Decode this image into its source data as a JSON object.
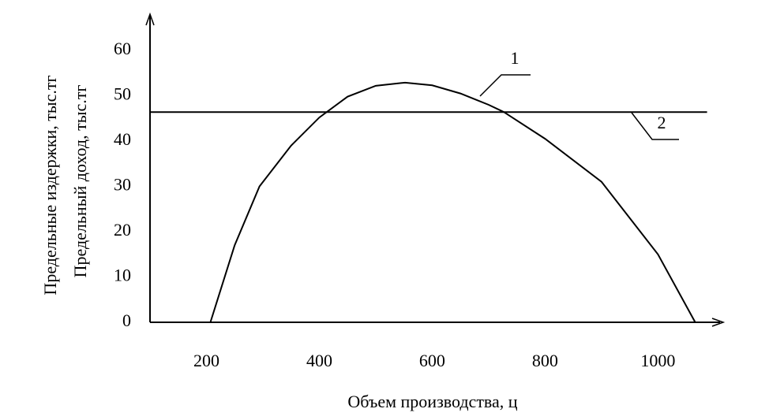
{
  "chart_data": {
    "type": "line",
    "ylabel": [
      "Предельные издержки, тыс.тг",
      "Предельный доход, тыс.тг"
    ],
    "xlabel": "Объем производства, ц",
    "xlim": [
      100,
      1110
    ],
    "ylim": [
      0,
      68
    ],
    "xticks": [
      200,
      400,
      600,
      800,
      1000
    ],
    "yticks": [
      0,
      10,
      20,
      30,
      40,
      50,
      60
    ],
    "series": [
      {
        "name": "1",
        "color": "#000000",
        "x": [
          207,
          250,
          294,
          350,
          400,
          450,
          500,
          552,
          600,
          650,
          700,
          727,
          800,
          900,
          1000,
          1066
        ],
        "values": [
          0,
          17,
          30,
          39,
          45.2,
          49.8,
          52.2,
          52.9,
          52.3,
          50.5,
          48,
          46.4,
          40.5,
          31,
          15,
          0
        ]
      },
      {
        "name": "2",
        "color": "#000000",
        "x": [
          100,
          1087
        ],
        "values": [
          46.4,
          46.4
        ]
      }
    ]
  }
}
